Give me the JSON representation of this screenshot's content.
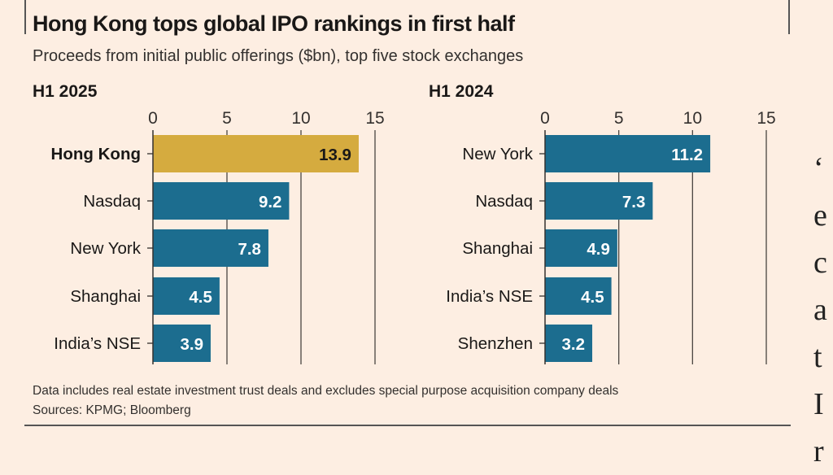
{
  "title": "Hong Kong tops global IPO rankings in first half",
  "subtitle": "Proceeds from initial public offerings ($bn), top five stock exchanges",
  "note": "Data includes real estate investment trust deals and excludes special purpose acquisition company deals",
  "source": "Sources: KPMG; Bloomberg",
  "right_edge_fragments": [
    "‘",
    "e",
    "c",
    "a",
    "t",
    "I",
    "r"
  ],
  "colors": {
    "highlight": "#d5ab3f",
    "bar": "#1c6d8f",
    "background": "#fdeee2",
    "grid": "#33302e"
  },
  "chart_data": [
    {
      "type": "bar",
      "orientation": "horizontal",
      "title": "H1 2025",
      "categories": [
        "Hong Kong",
        "Nasdaq",
        "New York",
        "Shanghai",
        "India’s NSE"
      ],
      "values": [
        13.9,
        9.2,
        7.8,
        4.5,
        3.9
      ],
      "highlight": "Hong Kong",
      "xlim": [
        0,
        15
      ],
      "xticks": [
        0,
        5,
        10,
        15
      ],
      "grid": true
    },
    {
      "type": "bar",
      "orientation": "horizontal",
      "title": "H1 2024",
      "categories": [
        "New York",
        "Nasdaq",
        "Shanghai",
        "India’s NSE",
        "Shenzhen"
      ],
      "values": [
        11.2,
        7.3,
        4.9,
        4.5,
        3.2
      ],
      "highlight": null,
      "xlim": [
        0,
        15
      ],
      "xticks": [
        0,
        5,
        10,
        15
      ],
      "grid": true
    }
  ]
}
